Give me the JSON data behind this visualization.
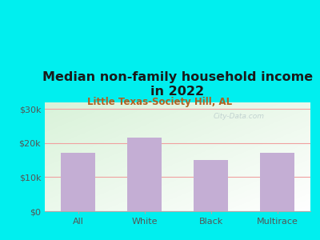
{
  "title": "Median non-family household income\nin 2022",
  "subtitle": "Little Texas-Society Hill, AL",
  "categories": [
    "All",
    "White",
    "Black",
    "Multirace"
  ],
  "values": [
    17000,
    21500,
    15000,
    17200
  ],
  "bar_color": "#c4aed4",
  "background_outer": "#00efef",
  "background_inner_colors": [
    "#d8f0d8",
    "#f0f8f0",
    "#f8faf5",
    "#ffffff"
  ],
  "yticks": [
    0,
    10000,
    20000,
    30000
  ],
  "ytick_labels": [
    "$0",
    "$10k",
    "$20k",
    "$30k"
  ],
  "ylim": [
    0,
    32000
  ],
  "title_fontsize": 11.5,
  "subtitle_fontsize": 8.5,
  "tick_fontsize": 8,
  "title_color": "#1a1a1a",
  "subtitle_color": "#b06020",
  "tick_color": "#555555",
  "grid_color": "#f0a0a0",
  "watermark_text": "City-Data.com",
  "watermark_color": "#bbcccc"
}
